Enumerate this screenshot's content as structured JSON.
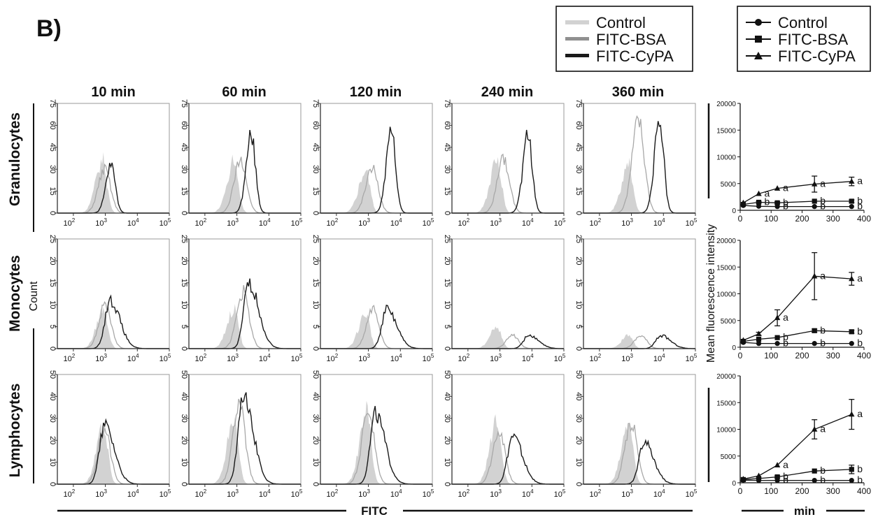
{
  "panel_label": "B)",
  "legend_hist": [
    "Control",
    "FITC-BSA",
    "FITC-CyPA"
  ],
  "legend_mfi": [
    "Control",
    "FITC-BSA",
    "FITC-CyPA"
  ],
  "time_labels": [
    "10 min",
    "60 min",
    "120 min",
    "240 min",
    "360 min"
  ],
  "row_labels": [
    "Granulocytes",
    "Monocytes",
    "Lymphocytes"
  ],
  "y_axis_title": "Count",
  "x_axis_title": "FITC",
  "mfi_y_title": "Mean fluorescence intensity",
  "mfi_x_title": "min",
  "colors": {
    "control_fill": "#d2d2d2",
    "bsa_line": "#a8a8a8",
    "cypa_line": "#1a1a1a",
    "axis": "#333333"
  },
  "chart_data": [
    {
      "type": "histogram-grid",
      "x_scale": "log",
      "x_ticks": [
        "10",
        "10",
        "10",
        "10"
      ],
      "x_tick_exponents": [
        "2",
        "3",
        "4",
        "5"
      ],
      "rows": [
        {
          "name": "Granulocytes",
          "ylim": [
            0,
            75
          ],
          "y_ticks": [
            "0",
            "15",
            "30",
            "45",
            "60",
            "75"
          ],
          "panels": [
            {
              "time": "10 min",
              "control_peak": {
                "log_x": 2.92,
                "count": 36
              },
              "bsa_peak": {
                "log_x": 2.98,
                "count": 30
              },
              "cypa_peak": {
                "log_x": 3.18,
                "count": 33
              }
            },
            {
              "time": "60 min",
              "control_peak": {
                "log_x": 2.92,
                "count": 36
              },
              "bsa_peak": {
                "log_x": 3.12,
                "count": 37
              },
              "cypa_peak": {
                "log_x": 3.45,
                "count": 53
              }
            },
            {
              "time": "120 min",
              "control_peak": {
                "log_x": 2.92,
                "count": 30
              },
              "bsa_peak": {
                "log_x": 3.12,
                "count": 31
              },
              "cypa_peak": {
                "log_x": 3.72,
                "count": 55
              }
            },
            {
              "time": "240 min",
              "control_peak": {
                "log_x": 2.92,
                "count": 36
              },
              "bsa_peak": {
                "log_x": 3.12,
                "count": 37
              },
              "cypa_peak": {
                "log_x": 3.88,
                "count": 53
              }
            },
            {
              "time": "360 min",
              "control_peak": {
                "log_x": 2.92,
                "count": 33
              },
              "bsa_peak": {
                "log_x": 3.22,
                "count": 65
              },
              "cypa_peak": {
                "log_x": 3.88,
                "count": 63
              }
            }
          ]
        },
        {
          "name": "Monocytes",
          "ylim": [
            0,
            25
          ],
          "y_ticks": [
            "0",
            "5",
            "10",
            "15",
            "20",
            "25"
          ],
          "panels": [
            {
              "time": "10 min",
              "control_peak": {
                "log_x": 2.95,
                "count": 9
              },
              "bsa_peak": {
                "log_x": 3.0,
                "count": 10
              },
              "cypa_peak": {
                "log_x": 3.15,
                "count": 11
              }
            },
            {
              "time": "60 min",
              "control_peak": {
                "log_x": 2.92,
                "count": 9
              },
              "bsa_peak": {
                "log_x": 3.2,
                "count": 13
              },
              "cypa_peak": {
                "log_x": 3.38,
                "count": 15
              }
            },
            {
              "time": "120 min",
              "control_peak": {
                "log_x": 2.92,
                "count": 8
              },
              "bsa_peak": {
                "log_x": 3.15,
                "count": 9
              },
              "cypa_peak": {
                "log_x": 3.58,
                "count": 9
              }
            },
            {
              "time": "240 min",
              "control_peak": {
                "log_x": 2.92,
                "count": 5
              },
              "bsa_peak": {
                "log_x": 3.4,
                "count": 3
              },
              "cypa_peak": {
                "log_x": 3.9,
                "count": 3
              }
            },
            {
              "time": "360 min",
              "control_peak": {
                "log_x": 2.92,
                "count": 3
              },
              "bsa_peak": {
                "log_x": 3.3,
                "count": 3
              },
              "cypa_peak": {
                "log_x": 3.92,
                "count": 3
              }
            }
          ]
        },
        {
          "name": "Lymphocytes",
          "ylim": [
            0,
            50
          ],
          "y_ticks": [
            "0",
            "10",
            "20",
            "30",
            "40",
            "50"
          ],
          "panels": [
            {
              "time": "10 min",
              "control_peak": {
                "log_x": 2.95,
                "count": 26
              },
              "bsa_peak": {
                "log_x": 2.98,
                "count": 25
              },
              "cypa_peak": {
                "log_x": 2.98,
                "count": 27
              }
            },
            {
              "time": "60 min",
              "control_peak": {
                "log_x": 2.92,
                "count": 30
              },
              "bsa_peak": {
                "log_x": 3.08,
                "count": 36
              },
              "cypa_peak": {
                "log_x": 3.2,
                "count": 42
              }
            },
            {
              "time": "120 min",
              "control_peak": {
                "log_x": 2.95,
                "count": 34
              },
              "bsa_peak": {
                "log_x": 3.0,
                "count": 34
              },
              "cypa_peak": {
                "log_x": 3.22,
                "count": 32
              }
            },
            {
              "time": "240 min",
              "control_peak": {
                "log_x": 2.92,
                "count": 30
              },
              "bsa_peak": {
                "log_x": 2.98,
                "count": 24
              },
              "cypa_peak": {
                "log_x": 3.4,
                "count": 22
              }
            },
            {
              "time": "360 min",
              "control_peak": {
                "log_x": 2.92,
                "count": 30
              },
              "bsa_peak": {
                "log_x": 3.0,
                "count": 28
              },
              "cypa_peak": {
                "log_x": 3.4,
                "count": 19
              }
            }
          ]
        }
      ]
    },
    {
      "type": "line",
      "title": "Granulocytes",
      "x": [
        10,
        60,
        120,
        240,
        360
      ],
      "x_ticks": [
        0,
        100,
        200,
        300,
        400
      ],
      "xlim": [
        0,
        400
      ],
      "ylim": [
        0,
        20000
      ],
      "y_ticks": [
        0,
        5000,
        10000,
        15000,
        20000
      ],
      "series": [
        {
          "name": "Control",
          "marker": "circle",
          "values": [
            900,
            750,
            700,
            700,
            700
          ],
          "errors": [
            0,
            0,
            0,
            0,
            0
          ],
          "labels": [
            "",
            "",
            "b",
            "b",
            "b"
          ]
        },
        {
          "name": "FITC-BSA",
          "marker": "square",
          "values": [
            1100,
            1500,
            1400,
            1700,
            1700
          ],
          "errors": [
            0,
            150,
            200,
            0,
            250
          ],
          "labels": [
            "",
            "b",
            "b",
            "b",
            "b"
          ]
        },
        {
          "name": "FITC-CyPA",
          "marker": "triangle",
          "values": [
            1400,
            3100,
            4100,
            4900,
            5400
          ],
          "errors": [
            0,
            0,
            0,
            1500,
            800
          ],
          "labels": [
            "",
            "a",
            "a",
            "a",
            "a"
          ]
        }
      ]
    },
    {
      "type": "line",
      "title": "Monocytes",
      "x": [
        10,
        60,
        120,
        240,
        360
      ],
      "x_ticks": [
        0,
        100,
        200,
        300,
        400
      ],
      "xlim": [
        0,
        400
      ],
      "ylim": [
        0,
        20000
      ],
      "y_ticks": [
        0,
        5000,
        10000,
        15000,
        20000
      ],
      "series": [
        {
          "name": "Control",
          "marker": "circle",
          "values": [
            900,
            700,
            700,
            700,
            700
          ],
          "errors": [
            0,
            0,
            0,
            0,
            0
          ],
          "labels": [
            "",
            "",
            "b",
            "b",
            "b"
          ]
        },
        {
          "name": "FITC-BSA",
          "marker": "square",
          "values": [
            1100,
            1500,
            1800,
            3100,
            2900
          ],
          "errors": [
            0,
            0,
            0,
            300,
            300
          ],
          "labels": [
            "",
            "",
            "b",
            "b",
            "b"
          ]
        },
        {
          "name": "FITC-CyPA",
          "marker": "triangle",
          "values": [
            1300,
            2500,
            5500,
            13300,
            12800
          ],
          "errors": [
            0,
            300,
            1500,
            4400,
            1200
          ],
          "labels": [
            "",
            "",
            "a",
            "a",
            "a"
          ]
        }
      ]
    },
    {
      "type": "line",
      "title": "Lymphocytes",
      "x": [
        10,
        60,
        120,
        240,
        360
      ],
      "x_ticks": [
        0,
        100,
        200,
        300,
        400
      ],
      "xlim": [
        0,
        400
      ],
      "ylim": [
        0,
        20000
      ],
      "y_ticks": [
        0,
        5000,
        10000,
        15000,
        20000
      ],
      "series": [
        {
          "name": "Control",
          "marker": "circle",
          "values": [
            500,
            450,
            450,
            450,
            450
          ],
          "errors": [
            0,
            0,
            0,
            0,
            0
          ],
          "labels": [
            "",
            "",
            "b",
            "b",
            "b"
          ]
        },
        {
          "name": "FITC-BSA",
          "marker": "square",
          "values": [
            600,
            800,
            1100,
            2200,
            2500
          ],
          "errors": [
            0,
            0,
            200,
            0,
            800
          ],
          "labels": [
            "",
            "",
            "b",
            "b",
            "b"
          ]
        },
        {
          "name": "FITC-CyPA",
          "marker": "triangle",
          "values": [
            700,
            1300,
            3300,
            10000,
            12800
          ],
          "errors": [
            0,
            0,
            0,
            1800,
            2800
          ],
          "labels": [
            "",
            "",
            "a",
            "a",
            "a"
          ]
        }
      ]
    }
  ]
}
